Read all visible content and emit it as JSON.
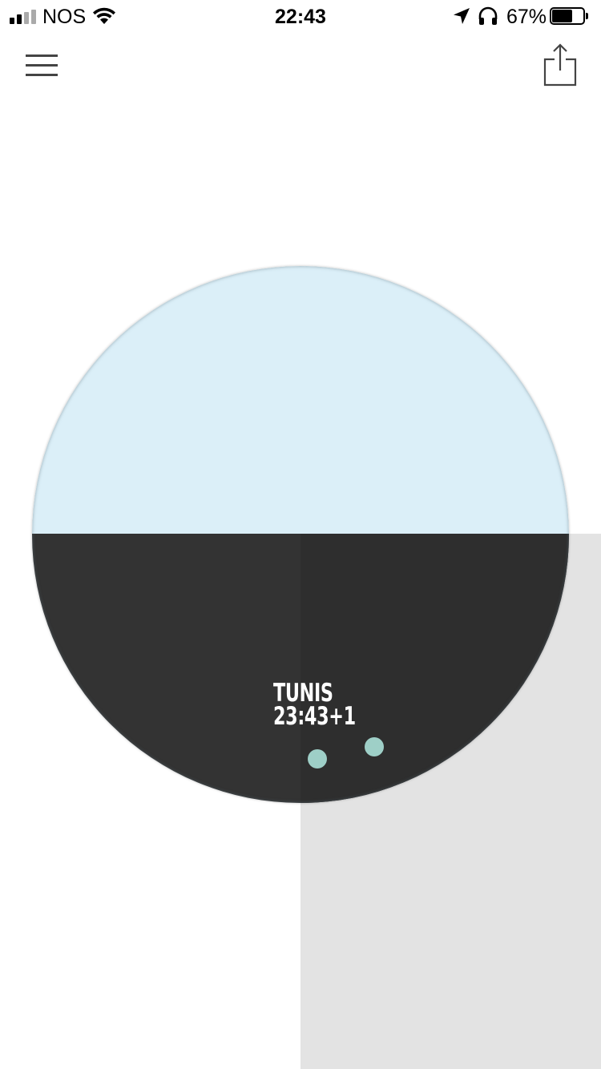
{
  "status_bar": {
    "carrier": "NOS",
    "time": "22:43",
    "battery_percent_label": "67%",
    "battery_level": 0.67,
    "signal_bars_active": 2,
    "signal_bars_total": 4,
    "icons": [
      "signal-icon",
      "wifi-icon",
      "location-arrow-icon",
      "headphones-icon",
      "battery-icon"
    ]
  },
  "header": {
    "icons": [
      "hamburger-menu-icon",
      "share-icon"
    ]
  },
  "globe": {
    "colors": {
      "day": "#dbeff8",
      "night": "#333333",
      "panel": "#e3e3e3",
      "marker": "#9ecfc7"
    },
    "city": {
      "name": "TUNIS",
      "time": "23:43+1"
    },
    "markers": [
      "city-marker",
      "city-marker"
    ]
  }
}
